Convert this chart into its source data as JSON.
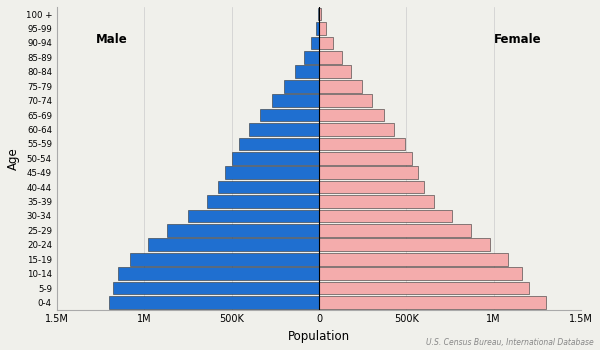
{
  "age_groups": [
    "0-4",
    "5-9",
    "10-14",
    "15-19",
    "20-24",
    "25-29",
    "30-34",
    "35-39",
    "40-44",
    "45-49",
    "50-54",
    "55-59",
    "60-64",
    "65-69",
    "70-74",
    "75-79",
    "80-84",
    "85-89",
    "90-94",
    "95-99",
    "100 +"
  ],
  "male": [
    1200000,
    1180000,
    1150000,
    1080000,
    980000,
    870000,
    750000,
    640000,
    580000,
    540000,
    500000,
    460000,
    400000,
    340000,
    270000,
    200000,
    140000,
    85000,
    45000,
    18000,
    5000
  ],
  "female": [
    1300000,
    1200000,
    1160000,
    1080000,
    980000,
    870000,
    760000,
    660000,
    600000,
    565000,
    530000,
    490000,
    430000,
    370000,
    305000,
    245000,
    185000,
    130000,
    80000,
    38000,
    14000
  ],
  "male_color": "#1F6FD0",
  "female_color": "#F4ACAC",
  "male_label": "Male",
  "female_label": "Female",
  "xlabel": "Population",
  "ylabel": "Age",
  "source_text": "U.S. Census Bureau, International Database",
  "xlim": 1500000,
  "background_color": "#f0f0eb",
  "bar_edgecolor": "#333333",
  "bar_linewidth": 0.4
}
